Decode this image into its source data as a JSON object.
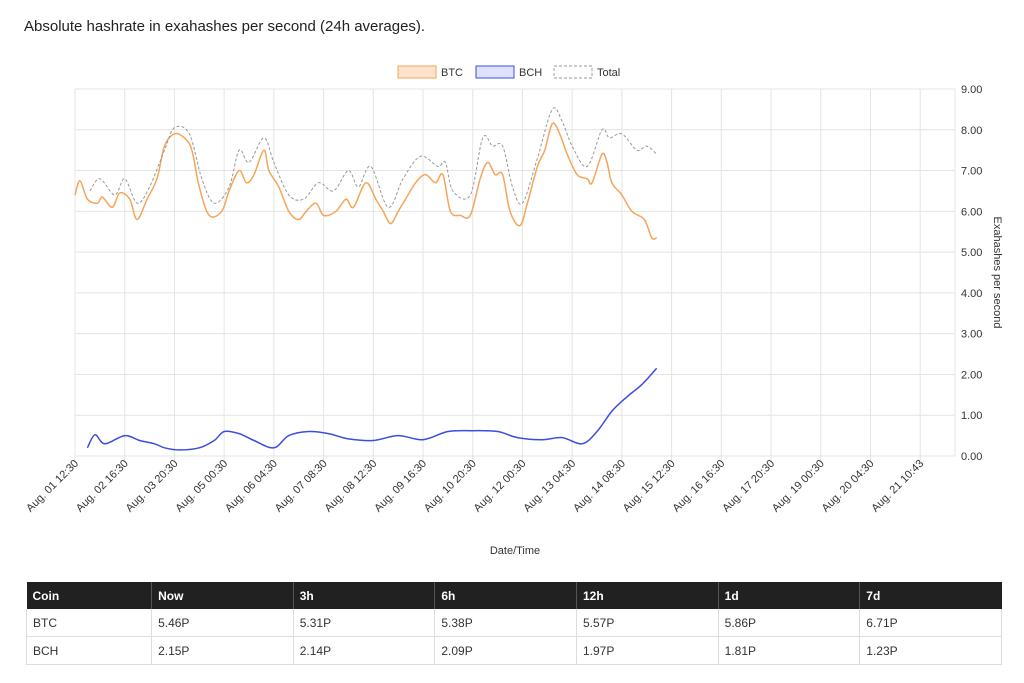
{
  "heading": "Absolute hashrate in exahashes per second (24h averages).",
  "chart_data": {
    "type": "line",
    "title": "",
    "xlabel": "Date/Time",
    "ylabel": "Exahashes per second",
    "ylim": [
      0,
      9
    ],
    "yticks": [
      "0.00",
      "1.00",
      "2.00",
      "3.00",
      "4.00",
      "5.00",
      "6.00",
      "7.00",
      "8.00",
      "9.00"
    ],
    "x_tick_labels": [
      "Aug. 01 12:30",
      "Aug. 02 16:30",
      "Aug. 03 20:30",
      "Aug. 05 00:30",
      "Aug. 06 04:30",
      "Aug. 07 08:30",
      "Aug. 08 12:30",
      "Aug. 09 16:30",
      "Aug. 10 20:30",
      "Aug. 12 00:30",
      "Aug. 13 04:30",
      "Aug. 14 08:30",
      "Aug. 15 12:30",
      "Aug. 16 16:30",
      "Aug. 17 20:30",
      "Aug. 19 00:30",
      "Aug. 20 04:30",
      "Aug. 21 10:43"
    ],
    "grid": true,
    "legend_position": "top-center",
    "series": [
      {
        "name": "BTC",
        "color": "#f5a55a",
        "points": [
          [
            0,
            6.4
          ],
          [
            0.1,
            6.75
          ],
          [
            0.25,
            6.3
          ],
          [
            0.45,
            6.2
          ],
          [
            0.55,
            6.35
          ],
          [
            0.75,
            6.1
          ],
          [
            0.9,
            6.45
          ],
          [
            1.1,
            6.3
          ],
          [
            1.25,
            5.8
          ],
          [
            1.45,
            6.3
          ],
          [
            1.65,
            6.8
          ],
          [
            1.8,
            7.6
          ],
          [
            2.0,
            7.9
          ],
          [
            2.2,
            7.8
          ],
          [
            2.35,
            7.5
          ],
          [
            2.5,
            6.6
          ],
          [
            2.7,
            5.9
          ],
          [
            2.95,
            6.0
          ],
          [
            3.1,
            6.5
          ],
          [
            3.3,
            7.0
          ],
          [
            3.45,
            6.7
          ],
          [
            3.6,
            6.9
          ],
          [
            3.8,
            7.5
          ],
          [
            3.9,
            7.0
          ],
          [
            4.1,
            6.6
          ],
          [
            4.3,
            6.0
          ],
          [
            4.5,
            5.8
          ],
          [
            4.65,
            6.0
          ],
          [
            4.85,
            6.2
          ],
          [
            5.0,
            5.9
          ],
          [
            5.25,
            6.0
          ],
          [
            5.45,
            6.3
          ],
          [
            5.6,
            6.1
          ],
          [
            5.85,
            6.7
          ],
          [
            6.05,
            6.3
          ],
          [
            6.2,
            6.0
          ],
          [
            6.35,
            5.7
          ],
          [
            6.5,
            6.0
          ],
          [
            6.65,
            6.3
          ],
          [
            6.85,
            6.7
          ],
          [
            7.05,
            6.9
          ],
          [
            7.25,
            6.7
          ],
          [
            7.4,
            6.9
          ],
          [
            7.55,
            6.0
          ],
          [
            7.75,
            5.9
          ],
          [
            7.95,
            5.9
          ],
          [
            8.15,
            6.8
          ],
          [
            8.3,
            7.2
          ],
          [
            8.45,
            6.9
          ],
          [
            8.6,
            6.9
          ],
          [
            8.75,
            6.0
          ],
          [
            8.95,
            5.65
          ],
          [
            9.1,
            6.2
          ],
          [
            9.3,
            7.1
          ],
          [
            9.45,
            7.5
          ],
          [
            9.6,
            8.15
          ],
          [
            9.75,
            7.9
          ],
          [
            9.9,
            7.4
          ],
          [
            10.1,
            6.9
          ],
          [
            10.3,
            6.8
          ],
          [
            10.4,
            6.7
          ],
          [
            10.6,
            7.4
          ],
          [
            10.7,
            7.2
          ],
          [
            10.8,
            6.7
          ],
          [
            11.0,
            6.4
          ],
          [
            11.2,
            6.0
          ],
          [
            11.45,
            5.8
          ],
          [
            11.6,
            5.35
          ],
          [
            11.7,
            5.35
          ]
        ]
      },
      {
        "name": "BCH",
        "color": "#3b4ee0",
        "points": [
          [
            0.25,
            0.2
          ],
          [
            0.4,
            0.52
          ],
          [
            0.6,
            0.3
          ],
          [
            1.0,
            0.5
          ],
          [
            1.3,
            0.38
          ],
          [
            1.6,
            0.3
          ],
          [
            1.8,
            0.2
          ],
          [
            2.1,
            0.15
          ],
          [
            2.5,
            0.2
          ],
          [
            2.8,
            0.38
          ],
          [
            3.0,
            0.6
          ],
          [
            3.3,
            0.55
          ],
          [
            3.6,
            0.38
          ],
          [
            4.0,
            0.2
          ],
          [
            4.3,
            0.5
          ],
          [
            4.7,
            0.6
          ],
          [
            5.1,
            0.55
          ],
          [
            5.5,
            0.42
          ],
          [
            6.0,
            0.38
          ],
          [
            6.5,
            0.5
          ],
          [
            7.0,
            0.4
          ],
          [
            7.5,
            0.6
          ],
          [
            8.0,
            0.62
          ],
          [
            8.5,
            0.6
          ],
          [
            8.9,
            0.45
          ],
          [
            9.4,
            0.4
          ],
          [
            9.8,
            0.45
          ],
          [
            10.2,
            0.3
          ],
          [
            10.5,
            0.6
          ],
          [
            10.8,
            1.1
          ],
          [
            11.1,
            1.45
          ],
          [
            11.4,
            1.75
          ],
          [
            11.7,
            2.15
          ]
        ]
      },
      {
        "name": "Total",
        "color": "#999999",
        "points": [
          [
            0.3,
            6.5
          ],
          [
            0.5,
            6.8
          ],
          [
            0.8,
            6.4
          ],
          [
            1.0,
            6.8
          ],
          [
            1.25,
            6.2
          ],
          [
            1.5,
            6.6
          ],
          [
            1.8,
            7.5
          ],
          [
            2.0,
            8.05
          ],
          [
            2.3,
            7.9
          ],
          [
            2.55,
            6.8
          ],
          [
            2.8,
            6.2
          ],
          [
            3.1,
            6.6
          ],
          [
            3.3,
            7.5
          ],
          [
            3.5,
            7.2
          ],
          [
            3.8,
            7.8
          ],
          [
            4.0,
            7.2
          ],
          [
            4.3,
            6.4
          ],
          [
            4.6,
            6.3
          ],
          [
            4.9,
            6.7
          ],
          [
            5.2,
            6.5
          ],
          [
            5.5,
            7.0
          ],
          [
            5.7,
            6.6
          ],
          [
            5.95,
            7.1
          ],
          [
            6.3,
            6.1
          ],
          [
            6.6,
            6.8
          ],
          [
            6.95,
            7.35
          ],
          [
            7.3,
            7.1
          ],
          [
            7.45,
            7.2
          ],
          [
            7.6,
            6.5
          ],
          [
            7.95,
            6.4
          ],
          [
            8.2,
            7.8
          ],
          [
            8.4,
            7.6
          ],
          [
            8.6,
            7.6
          ],
          [
            8.8,
            6.6
          ],
          [
            9.0,
            6.2
          ],
          [
            9.3,
            7.3
          ],
          [
            9.6,
            8.5
          ],
          [
            9.8,
            8.2
          ],
          [
            10.0,
            7.6
          ],
          [
            10.3,
            7.1
          ],
          [
            10.6,
            8.0
          ],
          [
            10.75,
            7.8
          ],
          [
            11.0,
            7.9
          ],
          [
            11.3,
            7.5
          ],
          [
            11.5,
            7.6
          ],
          [
            11.7,
            7.4
          ]
        ]
      }
    ]
  },
  "table": {
    "headers": [
      "Coin",
      "Now",
      "3h",
      "6h",
      "12h",
      "1d",
      "7d"
    ],
    "rows": [
      [
        "BTC",
        "5.46P",
        "5.31P",
        "5.38P",
        "5.57P",
        "5.86P",
        "6.71P"
      ],
      [
        "BCH",
        "2.15P",
        "2.14P",
        "2.09P",
        "1.97P",
        "1.81P",
        "1.23P"
      ]
    ]
  }
}
